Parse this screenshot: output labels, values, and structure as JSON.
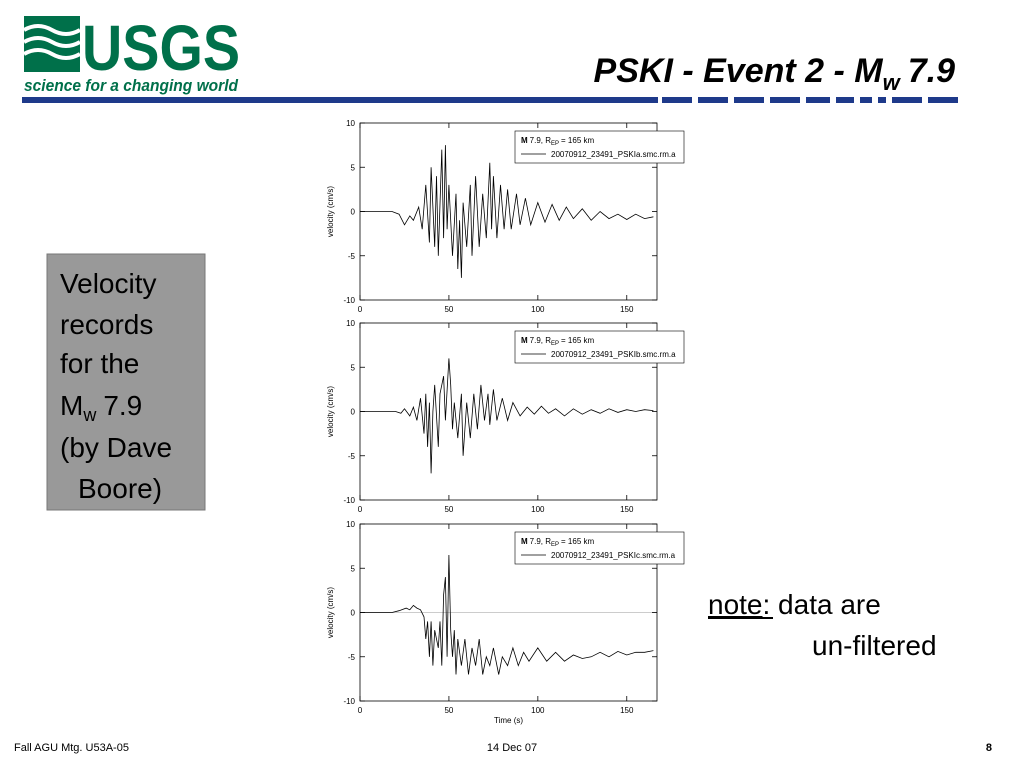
{
  "header": {
    "logo": "USGS",
    "tagline": "science for a changing world",
    "title": "PSKI - Event 2 - M",
    "title_subscript": "w",
    "title_end": "7.9"
  },
  "sidebar": {
    "lines": [
      "Velocity",
      "records",
      "for the"
    ],
    "m": "M",
    "m_subscript": "w",
    "m_end": "7.9",
    "lines_end": [
      "(by Dave",
      "Boore)"
    ]
  },
  "note": {
    "label": "note",
    "text": ":  data are",
    "text2": "un-filtered"
  },
  "footer": {
    "left": "Fall AGU Mtg. U53A-05",
    "center": "14 Dec 07",
    "page": "8"
  },
  "chart_data": [
    {
      "type": "line",
      "ylabel": "velocity (cm/s)",
      "xlim": [
        0,
        167
      ],
      "ylim": [
        -10,
        10
      ],
      "xticks": [
        0,
        50,
        100,
        150
      ],
      "yticks": [
        -10,
        -5,
        0,
        5,
        10
      ],
      "legend_title": [
        "M",
        "7.9, R",
        "EP",
        "= 165 km"
      ],
      "x": [
        0,
        18,
        22,
        25,
        28,
        30,
        33,
        35,
        37,
        39,
        40,
        42,
        43,
        44,
        46,
        47,
        48,
        49,
        50,
        52,
        54,
        55,
        56,
        57,
        58,
        60,
        62,
        63,
        65,
        67,
        69,
        71,
        73,
        74,
        75,
        77,
        79,
        81,
        83,
        85,
        88,
        90,
        93,
        96,
        100,
        104,
        108,
        112,
        116,
        120,
        125,
        130,
        135,
        140,
        145,
        150,
        155,
        160,
        165
      ],
      "series": [
        {
          "name": "20070912_23491_PSKIa.smc.rm.a",
          "color": "#000000",
          "values": [
            0,
            0,
            -0.3,
            -1.5,
            -0.5,
            -1,
            0.5,
            -2,
            3,
            -3.5,
            5,
            -4,
            4,
            -5,
            7,
            -3,
            7.5,
            -2,
            3,
            -5,
            2,
            -6.5,
            -1,
            -7.5,
            1,
            -4,
            3,
            -5,
            4,
            -4,
            2,
            -3,
            5.5,
            -2,
            4,
            -3,
            3,
            -2,
            2.5,
            -2,
            2,
            -1.5,
            1.5,
            -1.5,
            1,
            -1.2,
            0.8,
            -1,
            0.5,
            -0.8,
            0.3,
            -1,
            0,
            -0.8,
            -0.3,
            -0.9,
            -0.3,
            -0.8,
            -0.6
          ]
        }
      ]
    },
    {
      "type": "line",
      "ylabel": "velocity (cm/s)",
      "xlim": [
        0,
        167
      ],
      "ylim": [
        -10,
        10
      ],
      "xticks": [
        0,
        50,
        100,
        150
      ],
      "yticks": [
        -10,
        -5,
        0,
        5,
        10
      ],
      "legend_title": [
        "M",
        "7.9, R",
        "EP",
        "= 165 km"
      ],
      "x": [
        0,
        20,
        23,
        25,
        28,
        30,
        32,
        34,
        36,
        37,
        38,
        39,
        40,
        41,
        42,
        44,
        45,
        47,
        48,
        50,
        51,
        52,
        53,
        55,
        57,
        58,
        60,
        62,
        64,
        66,
        68,
        70,
        72,
        73,
        75,
        77,
        80,
        83,
        86,
        90,
        94,
        98,
        102,
        106,
        110,
        115,
        120,
        125,
        130,
        135,
        140,
        145,
        150,
        155,
        160,
        165
      ],
      "series": [
        {
          "name": "20070912_23491_PSKIb.smc.rm.a",
          "color": "#000000",
          "values": [
            0,
            0,
            -0.2,
            0.3,
            -0.5,
            0.5,
            -1,
            1.5,
            -2.5,
            2,
            -4,
            1,
            -7,
            0,
            3,
            -4,
            2,
            4,
            -1,
            6,
            3,
            -2,
            1,
            -3,
            2,
            -5,
            1,
            -3,
            2,
            -2,
            3,
            -1,
            2,
            -1.5,
            2.5,
            -1,
            1.5,
            -1,
            1,
            -0.5,
            0.5,
            -0.3,
            0.6,
            -0.2,
            0.3,
            -0.5,
            0.3,
            -0.3,
            0.2,
            -0.2,
            0.3,
            -0.1,
            0.2,
            0,
            0.2,
            0.1
          ]
        }
      ]
    },
    {
      "type": "line",
      "ylabel": "velocity (cm/s)",
      "xlabel": "Time (s)",
      "xlim": [
        0,
        167
      ],
      "ylim": [
        -10,
        10
      ],
      "xticks": [
        0,
        50,
        100,
        150
      ],
      "yticks": [
        -10,
        -5,
        0,
        5,
        10
      ],
      "zero_line": true,
      "legend_title": [
        "M",
        "7.9, R",
        "EP",
        "= 165 km"
      ],
      "x": [
        0,
        18,
        22,
        26,
        28,
        30,
        32,
        34,
        36,
        37,
        38,
        39,
        40,
        41,
        42,
        44,
        45,
        46,
        47,
        48,
        49,
        50,
        51,
        52,
        53,
        54,
        55,
        57,
        59,
        61,
        63,
        65,
        67,
        69,
        71,
        73,
        75,
        78,
        80,
        83,
        86,
        89,
        92,
        95,
        100,
        105,
        110,
        115,
        120,
        125,
        130,
        135,
        140,
        145,
        150,
        155,
        160,
        165
      ],
      "series": [
        {
          "name": "20070912_23491_PSKIc.smc.rm.a",
          "color": "#000000",
          "values": [
            0,
            0,
            0.2,
            0.5,
            0.3,
            0.8,
            0.5,
            0.3,
            -0.5,
            -3,
            -1,
            -5,
            -1,
            -6,
            -2,
            -4,
            -1,
            -6,
            2,
            4,
            -5,
            6.5,
            -2,
            -5,
            -2,
            -7,
            -3,
            -6,
            -3,
            -7,
            -4,
            -6,
            -3,
            -7,
            -5,
            -6,
            -4,
            -7,
            -5,
            -6,
            -4,
            -6,
            -4.5,
            -5.5,
            -4,
            -5.5,
            -4.5,
            -5.5,
            -4.8,
            -5.2,
            -5,
            -4.5,
            -5,
            -4.4,
            -4.8,
            -4.5,
            -4.5,
            -4.3
          ]
        }
      ]
    }
  ]
}
